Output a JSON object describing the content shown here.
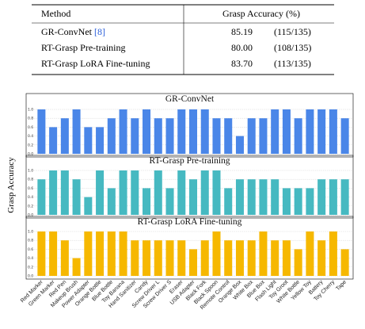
{
  "table": {
    "header": [
      "Method",
      "Grasp Accuracy (%)"
    ],
    "rows": [
      {
        "method": "GR-ConvNet",
        "citation": "[8]",
        "accuracy": "85.19",
        "count": "(115/135)"
      },
      {
        "method": "RT-Grasp Pre-training",
        "accuracy": "80.00",
        "count": "(108/135)"
      },
      {
        "method": "RT-Grasp LoRA Fine-tuning",
        "accuracy": "83.70",
        "count": "(113/135)"
      }
    ]
  },
  "chart_data": [
    {
      "type": "bar",
      "title": "GR-ConvNet",
      "color": "#4a86e8",
      "values": [
        1.0,
        0.6,
        0.8,
        1.0,
        0.6,
        0.6,
        0.8,
        1.0,
        0.8,
        1.0,
        0.8,
        0.8,
        1.0,
        1.0,
        1.0,
        0.8,
        0.8,
        0.4,
        0.8,
        0.8,
        1.0,
        1.0,
        0.8,
        1.0,
        1.0,
        1.0,
        0.8
      ],
      "ylim": [
        0,
        1
      ],
      "yticks": [
        {
          "value": 0,
          "label": "0.0"
        },
        0.2,
        0.4,
        0.6,
        0.8,
        {
          "value": 1,
          "label": "1.0"
        }
      ],
      "grid": true
    },
    {
      "type": "bar",
      "title": "RT-Grasp Pre-training",
      "color": "#46b9c1",
      "ylabel": "Grasp Accuracy",
      "values": [
        0.8,
        1.0,
        1.0,
        0.8,
        0.4,
        1.0,
        0.6,
        1.0,
        1.0,
        0.6,
        1.0,
        0.6,
        1.0,
        0.8,
        1.0,
        1.0,
        0.6,
        0.8,
        0.8,
        0.8,
        0.8,
        0.6,
        0.6,
        0.6,
        0.8,
        0.8,
        0.8
      ],
      "ylim": [
        0,
        1
      ],
      "yticks": [
        {
          "value": 0,
          "label": "0.0"
        },
        0.2,
        0.4,
        0.6,
        0.8,
        {
          "value": 1,
          "label": "1.0"
        }
      ],
      "grid": true
    },
    {
      "type": "bar",
      "title": "RT-Grasp LoRA Fine-tuning",
      "color": "#f6b800",
      "categories": [
        "Red Marker",
        "Green Marker",
        "Red Pen",
        "Makeup Brush",
        "Power Adapter",
        "Orange Bottle",
        "Blue Bottle",
        "Toy Banana",
        "Hand Sanitizer",
        "Candy",
        "Screw Driver L",
        "Screw Driver S",
        "Eraser",
        "USB Adapter",
        "Black Fork",
        "Black Spoon",
        "Remote Control",
        "Orange Box",
        "White Box",
        "Blue Box",
        "Flash Light",
        "Toy Groot",
        "White Bottle",
        "Yellow Toy",
        "Battery",
        "Toy Cherry",
        "Tape"
      ],
      "values": [
        1.0,
        1.0,
        0.8,
        0.4,
        1.0,
        1.0,
        1.0,
        1.0,
        0.8,
        0.8,
        0.8,
        0.8,
        0.8,
        0.6,
        0.8,
        1.0,
        0.8,
        0.8,
        0.8,
        1.0,
        0.8,
        0.8,
        0.6,
        1.0,
        0.8,
        1.0,
        0.6
      ],
      "ylim": [
        0,
        1
      ],
      "yticks": [
        {
          "value": 0,
          "label": "0.0"
        },
        0.2,
        0.4,
        0.6,
        0.8,
        {
          "value": 1,
          "label": "1.0"
        }
      ],
      "grid": true
    }
  ]
}
